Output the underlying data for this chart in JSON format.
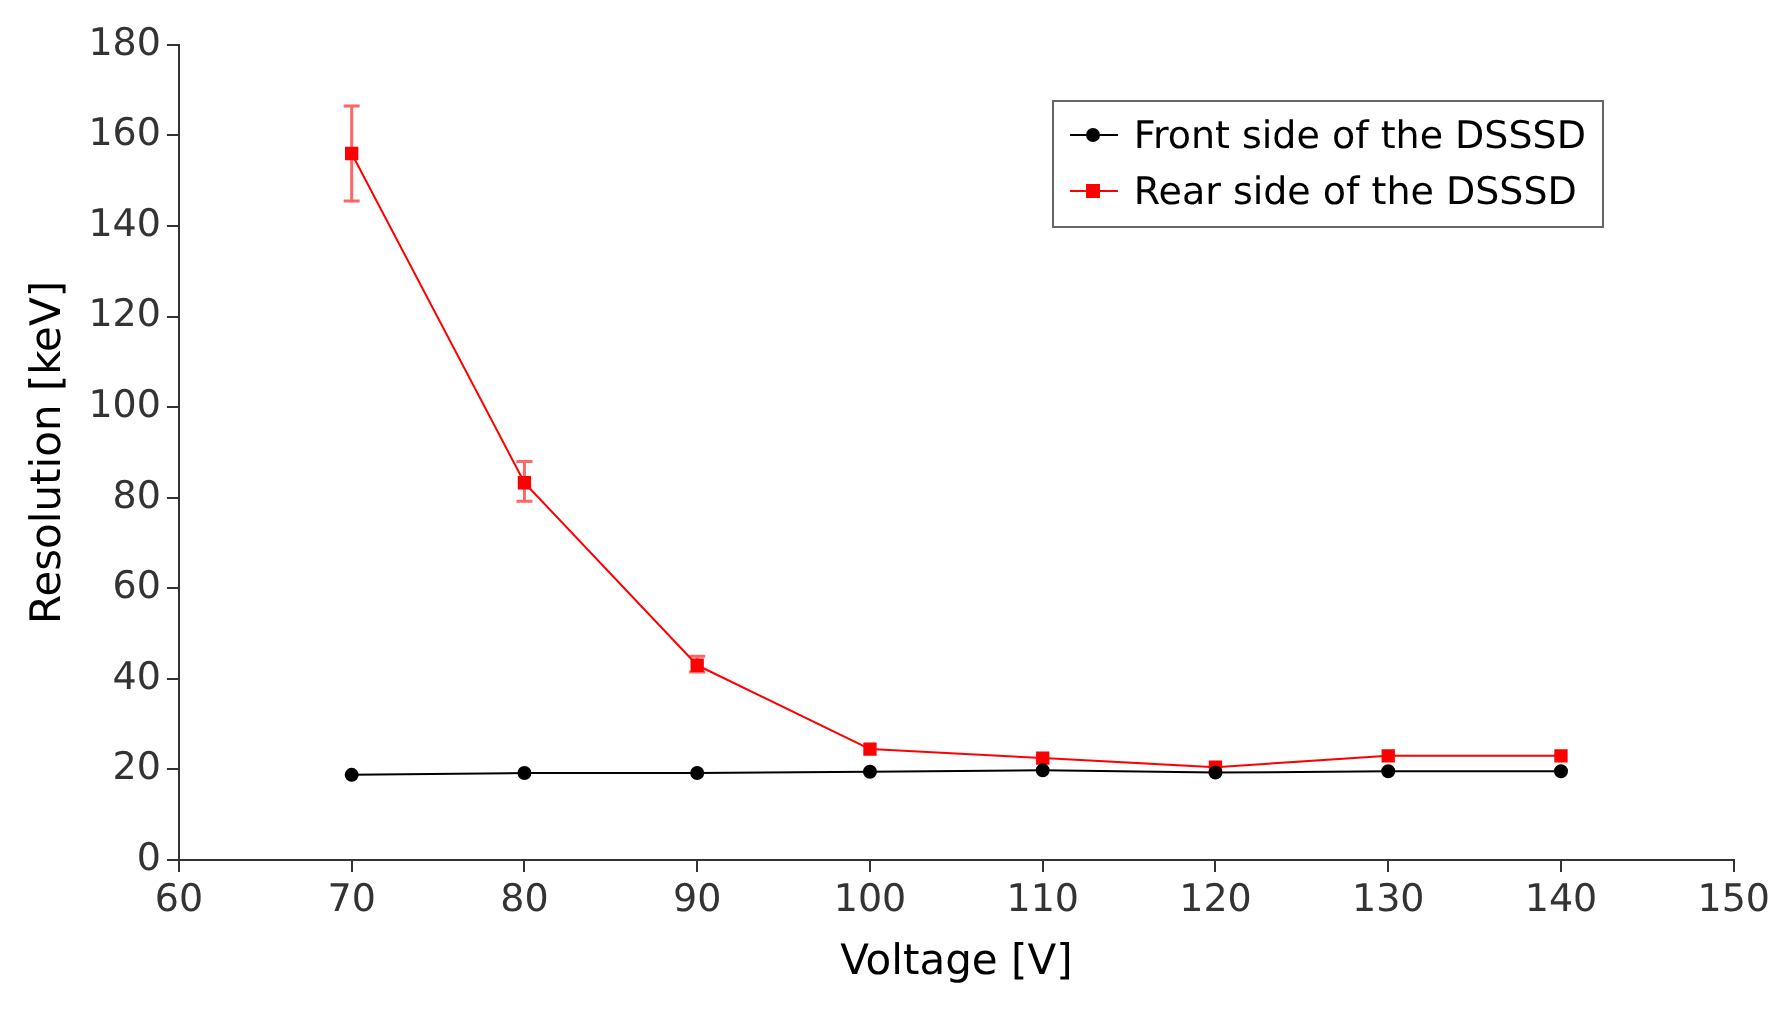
{
  "chart_data": {
    "type": "line",
    "xlabel": "Voltage [V]",
    "ylabel": "Resolution [keV]",
    "x": [
      70,
      80,
      90,
      100,
      110,
      120,
      130,
      140
    ],
    "series": [
      {
        "name": "Front side of the DSSSD",
        "color": "#000000",
        "marker": "circle",
        "values": [
          18.8,
          19.2,
          19.2,
          19.5,
          19.8,
          19.3,
          19.6,
          19.6
        ]
      },
      {
        "name": "Rear side of the DSSSD",
        "color": "#ff0000",
        "marker": "square",
        "values": [
          156,
          83.3,
          43,
          24.5,
          22.5,
          20.5,
          23,
          23
        ],
        "errors": [
          [
            145.5,
            166.5
          ],
          [
            79.2,
            88
          ],
          [
            41.5,
            45
          ],
          null,
          null,
          null,
          null,
          null
        ]
      }
    ],
    "xlim": [
      60,
      150
    ],
    "xticks": [
      60,
      70,
      80,
      90,
      100,
      110,
      120,
      130,
      140,
      150
    ],
    "ylim": [
      0,
      180
    ],
    "yticks": [
      0,
      20,
      40,
      60,
      80,
      100,
      120,
      140,
      160,
      180
    ],
    "grid": false,
    "legend": "top right"
  }
}
